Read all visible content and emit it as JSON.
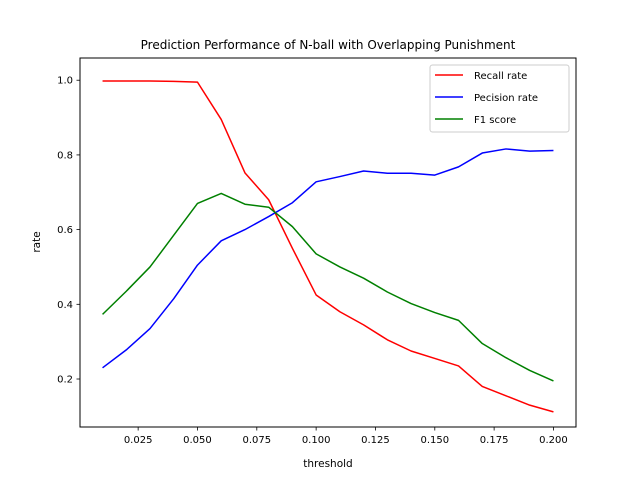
{
  "chart_data": {
    "type": "line",
    "title": "Prediction Performance of N-ball with Overlapping Punishment",
    "xlabel": "threshold",
    "ylabel": "rate",
    "xlim": [
      0.0005,
      0.2095
    ],
    "ylim": [
      0.0715,
      1.0595
    ],
    "xticks": [
      0.025,
      0.05,
      0.075,
      0.1,
      0.125,
      0.15,
      0.175,
      0.2
    ],
    "xtick_labels": [
      "0.025",
      "0.050",
      "0.075",
      "0.100",
      "0.125",
      "0.150",
      "0.175",
      "0.200"
    ],
    "yticks": [
      0.2,
      0.4,
      0.6,
      0.8,
      1.0
    ],
    "ytick_labels": [
      "0.2",
      "0.4",
      "0.6",
      "0.8",
      "1.0"
    ],
    "grid": false,
    "legend_position": "top-right",
    "x": [
      0.01,
      0.02,
      0.03,
      0.04,
      0.05,
      0.06,
      0.07,
      0.08,
      0.09,
      0.1,
      0.11,
      0.12,
      0.13,
      0.14,
      0.15,
      0.16,
      0.17,
      0.18,
      0.19,
      0.2
    ],
    "series": [
      {
        "name": "Recall rate",
        "color": "#ff0000",
        "values": [
          0.998,
          0.998,
          0.998,
          0.997,
          0.995,
          0.895,
          0.752,
          0.68,
          0.55,
          0.425,
          0.38,
          0.345,
          0.305,
          0.275,
          0.255,
          0.235,
          0.18,
          0.155,
          0.13,
          0.112
        ]
      },
      {
        "name": "Pecision rate",
        "color": "#0000ff",
        "values": [
          0.23,
          0.278,
          0.335,
          0.415,
          0.505,
          0.57,
          0.6,
          0.635,
          0.672,
          0.728,
          0.742,
          0.757,
          0.751,
          0.751,
          0.746,
          0.768,
          0.805,
          0.816,
          0.81,
          0.812
        ]
      },
      {
        "name": "F1 score",
        "color": "#008000",
        "values": [
          0.373,
          0.435,
          0.5,
          0.585,
          0.67,
          0.697,
          0.668,
          0.66,
          0.608,
          0.535,
          0.5,
          0.47,
          0.433,
          0.402,
          0.378,
          0.357,
          0.295,
          0.257,
          0.223,
          0.195
        ]
      }
    ]
  }
}
